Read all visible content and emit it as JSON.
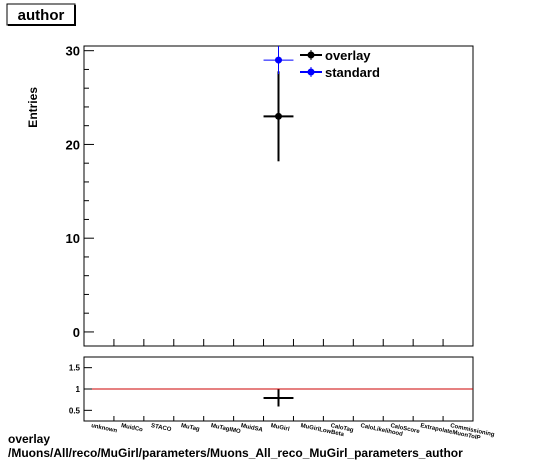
{
  "chart_data": [
    {
      "type": "scatter",
      "title": "author",
      "ylabel": "Entries",
      "categories": [
        "unknown",
        "MuidCo",
        "STACO",
        "MuTag",
        "MuTagIMO",
        "MuidSA",
        "MuGirl",
        "MuGirlLowBeta",
        "CaloTag",
        "CaloLikelihood",
        "CaloScore",
        "ExtrapolateMuonToIP",
        "Commissioning"
      ],
      "ylim": [
        -1.5,
        30.5
      ],
      "yticks": [
        0,
        10,
        20,
        30
      ],
      "legend_position": "top-right",
      "series": [
        {
          "name": "overlay",
          "color": "#000000",
          "marker": "circle",
          "points": [
            {
              "category": "MuGirl",
              "y": 23,
              "yerr": 4.8
            }
          ]
        },
        {
          "name": "standard",
          "color": "#0000ff",
          "marker": "circle",
          "points": [
            {
              "category": "MuGirl",
              "y": 29,
              "yerr": 1.5
            }
          ]
        }
      ]
    },
    {
      "type": "scatter",
      "categories": [
        "unknown",
        "MuidCo",
        "STACO",
        "MuTag",
        "MuTagIMO",
        "MuidSA",
        "MuGirl",
        "MuGirlLowBeta",
        "CaloTag",
        "CaloLikelihood",
        "CaloScore",
        "ExtrapolateMuonToIP",
        "Commissioning"
      ],
      "ylim": [
        0.25,
        1.75
      ],
      "yticks": [
        "0.5",
        "1",
        "1.5"
      ],
      "reference_line": 1,
      "reference_color": "#cc0000",
      "series": [
        {
          "name": "",
          "color": "#000000",
          "points": [
            {
              "category": "MuGirl",
              "y": 0.79,
              "yerr": 0.2
            }
          ]
        }
      ]
    }
  ],
  "caption": {
    "line1": "overlay",
    "line2": "/Muons/All/reco/MuGirl/parameters/Muons_All_reco_MuGirl_parameters_author"
  }
}
